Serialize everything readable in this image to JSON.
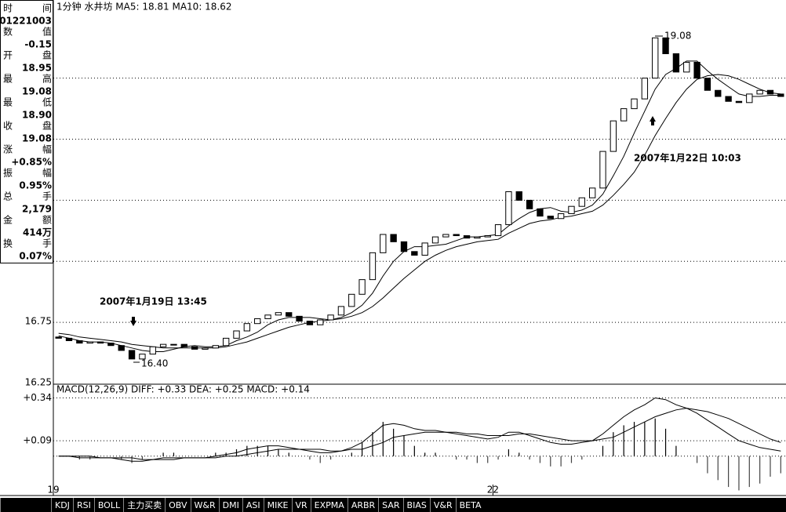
{
  "info_panel": {
    "rows": [
      {
        "left": "时",
        "right": "间",
        "value": "01221003"
      },
      {
        "left": "数",
        "right": "值",
        "value": "-0.15"
      },
      {
        "left": "开",
        "right": "盘",
        "value": "18.95"
      },
      {
        "left": "最",
        "right": "高",
        "value": "19.08"
      },
      {
        "left": "最",
        "right": "低",
        "value": "18.90"
      },
      {
        "left": "收",
        "right": "盘",
        "value": "19.08"
      },
      {
        "left": "涨",
        "right": "幅",
        "value": "+0.85%"
      },
      {
        "left": "振",
        "right": "幅",
        "value": "0.95%"
      },
      {
        "left": "总",
        "right": "手",
        "value": "2,179"
      },
      {
        "left": "金",
        "right": "额",
        "value": "414万"
      },
      {
        "left": "换",
        "right": "手",
        "value": "0.07%"
      }
    ]
  },
  "chart_data": [
    {
      "type": "candlestick",
      "title": "1分钟  水井坊 MA5: 18.81 MA10: 18.62",
      "categories": [
        "19",
        null,
        null,
        null,
        null,
        null,
        null,
        null,
        null,
        null,
        null,
        null,
        null,
        null,
        null,
        null,
        null,
        null,
        null,
        null,
        null,
        null,
        null,
        null,
        null,
        null,
        null,
        null,
        null,
        null,
        null,
        null,
        null,
        null,
        null,
        null,
        null,
        null,
        null,
        null,
        null,
        null,
        "22",
        null,
        null,
        null,
        null,
        null,
        null,
        null,
        null,
        null,
        null,
        null,
        null,
        null,
        null,
        null,
        null,
        null,
        null,
        null,
        null,
        null,
        null,
        null,
        null,
        null,
        null,
        null
      ],
      "open": [
        16.63,
        16.62,
        16.6,
        16.58,
        16.59,
        16.58,
        16.56,
        16.52,
        16.45,
        16.49,
        16.55,
        16.57,
        16.57,
        16.55,
        16.53,
        16.54,
        16.56,
        16.62,
        16.68,
        16.74,
        16.78,
        16.81,
        16.83,
        16.8,
        16.76,
        16.73,
        16.77,
        16.81,
        16.88,
        16.98,
        17.1,
        17.32,
        17.47,
        17.41,
        17.33,
        17.3,
        17.4,
        17.45,
        17.47,
        17.46,
        17.44,
        17.45,
        17.46,
        17.55,
        17.82,
        17.75,
        17.68,
        17.62,
        17.6,
        17.64,
        17.7,
        17.77,
        17.85,
        18.15,
        18.4,
        18.5,
        18.58,
        18.75,
        19.08,
        18.95,
        18.8,
        18.88,
        18.75,
        18.65,
        18.6,
        18.56,
        18.55,
        18.62,
        18.65,
        18.62
      ],
      "close": [
        16.62,
        16.6,
        16.58,
        16.59,
        16.58,
        16.56,
        16.52,
        16.45,
        16.49,
        16.55,
        16.57,
        16.57,
        16.55,
        16.53,
        16.54,
        16.56,
        16.62,
        16.68,
        16.74,
        16.78,
        16.81,
        16.83,
        16.8,
        16.76,
        16.73,
        16.77,
        16.81,
        16.88,
        16.98,
        17.1,
        17.32,
        17.47,
        17.41,
        17.33,
        17.3,
        17.4,
        17.45,
        17.47,
        17.46,
        17.44,
        17.45,
        17.46,
        17.55,
        17.82,
        17.75,
        17.68,
        17.62,
        17.6,
        17.64,
        17.7,
        17.77,
        17.85,
        18.15,
        18.4,
        18.5,
        18.58,
        18.75,
        19.08,
        18.95,
        18.8,
        18.88,
        18.75,
        18.65,
        18.6,
        18.56,
        18.55,
        18.62,
        18.65,
        18.62,
        18.6
      ],
      "series": [
        {
          "color": "#000000",
          "values": [
            16.64,
            16.62,
            16.6,
            16.59,
            16.59,
            16.58,
            16.56,
            16.54,
            16.52,
            16.51,
            16.51,
            16.53,
            16.55,
            16.56,
            16.55,
            16.55,
            16.56,
            16.6,
            16.63,
            16.67,
            16.73,
            16.77,
            16.79,
            16.79,
            16.79,
            16.78,
            16.77,
            16.79,
            16.83,
            16.89,
            16.99,
            17.13,
            17.25,
            17.33,
            17.37,
            17.37,
            17.38,
            17.39,
            17.42,
            17.45,
            17.45,
            17.46,
            17.47,
            17.54,
            17.6,
            17.65,
            17.68,
            17.69,
            17.66,
            17.65,
            17.67,
            17.71,
            17.8,
            17.95,
            18.11,
            18.3,
            18.48,
            18.66,
            18.78,
            18.83,
            18.89,
            18.89,
            18.81,
            18.74,
            18.68,
            18.62,
            18.6,
            18.6,
            18.61,
            18.61
          ]
        },
        {
          "color": "#000000",
          "values": [
            16.66,
            16.65,
            16.63,
            16.62,
            16.61,
            16.6,
            16.59,
            16.57,
            16.56,
            16.55,
            16.54,
            16.54,
            16.54,
            16.54,
            16.54,
            16.54,
            16.55,
            16.57,
            16.59,
            16.62,
            16.65,
            16.68,
            16.71,
            16.73,
            16.75,
            16.76,
            16.77,
            16.78,
            16.8,
            16.83,
            16.88,
            16.95,
            17.03,
            17.11,
            17.18,
            17.25,
            17.3,
            17.34,
            17.37,
            17.39,
            17.41,
            17.42,
            17.43,
            17.48,
            17.52,
            17.56,
            17.58,
            17.59,
            17.61,
            17.62,
            17.64,
            17.66,
            17.71,
            17.79,
            17.88,
            17.98,
            18.12,
            18.28,
            18.42,
            18.55,
            18.66,
            18.74,
            18.77,
            18.78,
            18.77,
            18.74,
            18.7,
            18.66,
            18.63,
            18.62
          ]
        }
      ],
      "ylim": [
        16.25,
        19.39
      ],
      "yticks": [
        16.25,
        16.75,
        17.25
      ],
      "extra_grid": [
        17.75,
        18.25,
        18.75
      ],
      "grid": true,
      "annotations": {
        "left_date": "2007年1月19日 13:45",
        "low": "16.40",
        "high": "19.08",
        "right_date": "2007年1月22日 10:03"
      }
    },
    {
      "type": "macd",
      "title": "MACD(12,26,9) DIFF: +0.33 DEA: +0.25 MACD: +0.14",
      "series": [
        {
          "color": "#000000",
          "values": [
            0.0,
            0.0,
            -0.01,
            -0.01,
            -0.01,
            -0.01,
            -0.02,
            -0.03,
            -0.03,
            -0.02,
            -0.01,
            -0.01,
            -0.01,
            -0.01,
            -0.01,
            0.0,
            0.01,
            0.02,
            0.04,
            0.05,
            0.06,
            0.06,
            0.05,
            0.04,
            0.03,
            0.02,
            0.02,
            0.03,
            0.05,
            0.08,
            0.13,
            0.18,
            0.19,
            0.18,
            0.16,
            0.15,
            0.15,
            0.14,
            0.13,
            0.12,
            0.11,
            0.1,
            0.11,
            0.14,
            0.14,
            0.12,
            0.1,
            0.08,
            0.07,
            0.07,
            0.08,
            0.09,
            0.13,
            0.18,
            0.23,
            0.27,
            0.3,
            0.34,
            0.33,
            0.3,
            0.28,
            0.25,
            0.21,
            0.17,
            0.13,
            0.09,
            0.07,
            0.05,
            0.04,
            0.03
          ]
        },
        {
          "color": "#000000",
          "values": [
            0.0,
            0.0,
            0.0,
            0.0,
            -0.01,
            -0.01,
            -0.01,
            -0.01,
            -0.02,
            -0.02,
            -0.02,
            -0.02,
            -0.01,
            -0.01,
            -0.01,
            -0.01,
            0.0,
            0.0,
            0.01,
            0.02,
            0.03,
            0.04,
            0.04,
            0.04,
            0.04,
            0.04,
            0.03,
            0.03,
            0.04,
            0.04,
            0.06,
            0.08,
            0.11,
            0.12,
            0.13,
            0.14,
            0.14,
            0.14,
            0.14,
            0.13,
            0.13,
            0.12,
            0.12,
            0.12,
            0.13,
            0.13,
            0.12,
            0.11,
            0.1,
            0.09,
            0.09,
            0.09,
            0.1,
            0.11,
            0.14,
            0.17,
            0.2,
            0.23,
            0.25,
            0.27,
            0.28,
            0.27,
            0.26,
            0.24,
            0.22,
            0.19,
            0.16,
            0.13,
            0.1,
            0.08
          ]
        }
      ],
      "bars": [
        0,
        0,
        -0.02,
        -0.02,
        0,
        0,
        -0.02,
        -0.04,
        -0.02,
        0,
        0.02,
        0.02,
        0,
        0,
        0,
        0.02,
        0.02,
        0.04,
        0.06,
        0.06,
        0.06,
        0.04,
        0.02,
        0,
        -0.02,
        -0.04,
        -0.02,
        0,
        0.02,
        0.08,
        0.14,
        0.2,
        0.16,
        0.12,
        0.06,
        0.02,
        0.02,
        0,
        -0.02,
        -0.02,
        -0.04,
        -0.04,
        -0.02,
        0.04,
        0.02,
        -0.02,
        -0.04,
        -0.06,
        -0.06,
        -0.04,
        -0.02,
        0,
        0.06,
        0.14,
        0.18,
        0.2,
        0.2,
        0.22,
        0.16,
        0.06,
        0,
        -0.04,
        -0.1,
        -0.14,
        -0.18,
        -0.2,
        -0.18,
        -0.16,
        -0.12,
        -0.1
      ],
      "ylim": [
        -0.23,
        0.42
      ],
      "yticks": [
        {
          "value": 0.34,
          "label": "+0.34"
        },
        {
          "value": 0.09,
          "label": "+0.09"
        }
      ],
      "grid": true
    }
  ],
  "tabs": [
    "KDJ",
    "RSI",
    "BOLL",
    "主力买卖",
    "OBV",
    "W&R",
    "DMI",
    "ASI",
    "MIKE",
    "VR",
    "EXPMA",
    "ARBR",
    "SAR",
    "BIAS",
    "V&R",
    "BETA"
  ]
}
